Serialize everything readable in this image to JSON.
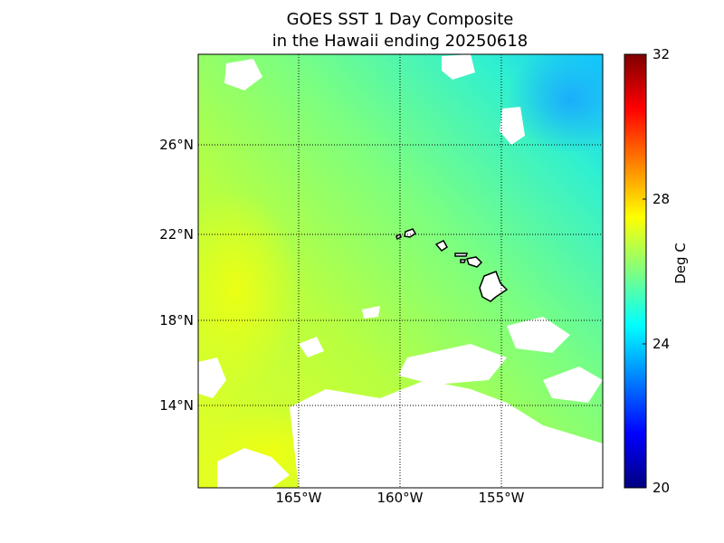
{
  "title_line1": "GOES SST 1 Day Composite",
  "title_line2": "in the Hawaii ending 20250618",
  "lat_labels": [
    "26°N",
    "22°N",
    "18°N",
    "14°N"
  ],
  "lon_labels": [
    "165°W",
    "160°W",
    "155°W"
  ],
  "colorbar": {
    "min": 20,
    "max": 32,
    "tick_labels": [
      "32",
      "28",
      "24",
      "20"
    ],
    "unit": "Deg C"
  },
  "colors": {
    "ocean_main": "#a8ff50",
    "ocean_cool": "#20e0ff",
    "ocean_warm": "#e6ff20",
    "cloud_mask": "#ffffff",
    "land": "#ffffff",
    "grid": "#000000"
  }
}
